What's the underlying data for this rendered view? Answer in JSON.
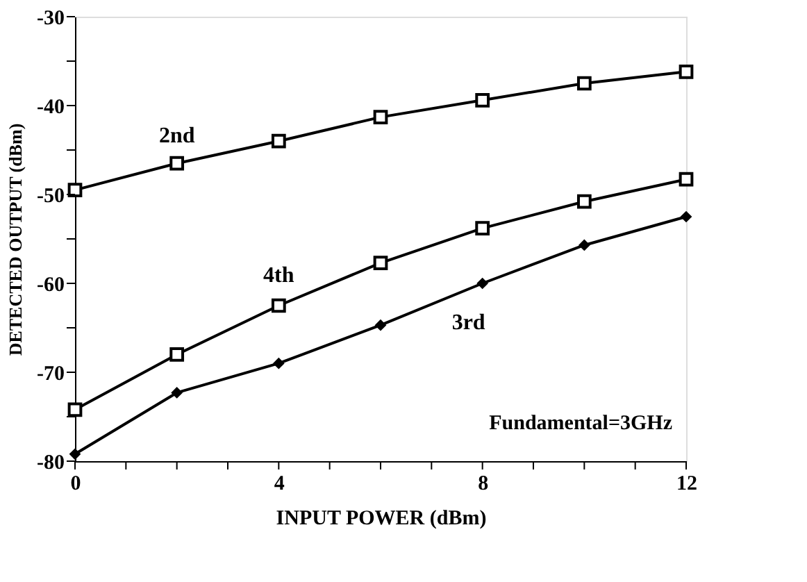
{
  "chart_data": {
    "type": "line",
    "xlabel": "INPUT POWER (dBm)",
    "ylabel": "DETECTED OUTPUT (dBm)",
    "x": [
      0,
      2,
      4,
      6,
      8,
      10,
      12
    ],
    "series": [
      {
        "name": "2nd",
        "color": "#000000",
        "marker": "square",
        "values": [
          -49.5,
          -46.5,
          -44,
          -41.3,
          -39.4,
          -37.5,
          -36.2
        ]
      },
      {
        "name": "4th",
        "color": "#000000",
        "marker": "square",
        "values": [
          -74.2,
          -68,
          -62.5,
          -57.7,
          -53.8,
          -50.8,
          -48.3
        ]
      },
      {
        "name": "3rd",
        "color": "#000000",
        "marker": "diamond",
        "values": [
          -79.2,
          -72.3,
          -69,
          -64.7,
          -60,
          -55.7,
          -52.5
        ]
      }
    ],
    "xlim": [
      0,
      12
    ],
    "xticks": [
      0,
      {
        "value": 1,
        "label": null
      },
      {
        "value": 2,
        "label": null
      },
      {
        "value": 3,
        "label": null
      },
      4,
      {
        "value": 5,
        "label": null
      },
      {
        "value": 6,
        "label": null
      },
      {
        "value": 7,
        "label": null
      },
      8,
      {
        "value": 9,
        "label": null
      },
      {
        "value": 10,
        "label": null
      },
      {
        "value": 11,
        "label": null
      },
      12
    ],
    "ylim": [
      -80,
      -30
    ],
    "yticks": [
      -80,
      {
        "value": -75,
        "label": null
      },
      -70,
      {
        "value": -65,
        "label": null
      },
      -60,
      {
        "value": -55,
        "label": null
      },
      -50,
      {
        "value": -45,
        "label": null
      },
      -40,
      {
        "value": -35,
        "label": null
      },
      -30
    ],
    "annotations": [
      "Fundamental=3GHz"
    ],
    "grid": false,
    "line_style": "solid"
  }
}
